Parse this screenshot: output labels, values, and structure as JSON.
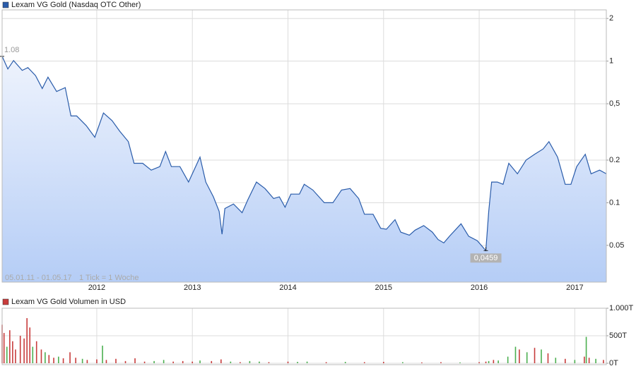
{
  "chart_data": [
    {
      "type": "line",
      "log_y": true,
      "grid": true,
      "legend": "Lexam VG Gold (Nasdaq OTC Other)",
      "note": "05.01.11 - 01.05.17",
      "note2": "1 Tick = 1 Woche",
      "max_label": "1.08",
      "min_label": "0,0459",
      "xlim": [
        2011.01,
        2017.33
      ],
      "xticks": [
        2012,
        2013,
        2014,
        2015,
        2016,
        2017
      ],
      "ylim": [
        0.0275,
        2.3
      ],
      "yticks": [
        0.05,
        0.1,
        0.2,
        {
          "value": 0.5,
          "label": "0,5"
        },
        1,
        2
      ],
      "x": [
        2011.01,
        2011.07,
        2011.13,
        2011.22,
        2011.28,
        2011.36,
        2011.43,
        2011.49,
        2011.58,
        2011.67,
        2011.73,
        2011.79,
        2011.89,
        2011.98,
        2012.07,
        2012.16,
        2012.24,
        2012.33,
        2012.39,
        2012.48,
        2012.57,
        2012.66,
        2012.72,
        2012.78,
        2012.87,
        2012.96,
        2013.05,
        2013.08,
        2013.14,
        2013.22,
        2013.28,
        2013.31,
        2013.34,
        2013.43,
        2013.52,
        2013.58,
        2013.67,
        2013.76,
        2013.85,
        2013.91,
        2013.97,
        2014.03,
        2014.12,
        2014.17,
        2014.26,
        2014.38,
        2014.47,
        2014.56,
        2014.65,
        2014.74,
        2014.8,
        2014.89,
        2014.97,
        2015.03,
        2015.12,
        2015.18,
        2015.27,
        2015.33,
        2015.42,
        2015.51,
        2015.57,
        2015.63,
        2015.69,
        2015.81,
        2015.89,
        2015.98,
        2016.07,
        2016.1,
        2016.13,
        2016.19,
        2016.25,
        2016.31,
        2016.4,
        2016.49,
        2016.58,
        2016.67,
        2016.73,
        2016.82,
        2016.9,
        2016.96,
        2017.02,
        2017.11,
        2017.17,
        2017.26,
        2017.33
      ],
      "series": [
        {
          "name": "Lexam VG Gold (Nasdaq OTC Other)",
          "color": "#2a5caa",
          "values": [
            1.08,
            0.88,
            1.01,
            0.86,
            0.9,
            0.79,
            0.64,
            0.77,
            0.61,
            0.65,
            0.41,
            0.41,
            0.35,
            0.29,
            0.43,
            0.38,
            0.32,
            0.27,
            0.19,
            0.19,
            0.17,
            0.18,
            0.23,
            0.18,
            0.18,
            0.14,
            0.19,
            0.21,
            0.14,
            0.11,
            0.087,
            0.06,
            0.091,
            0.098,
            0.085,
            0.105,
            0.14,
            0.126,
            0.107,
            0.11,
            0.093,
            0.115,
            0.115,
            0.135,
            0.123,
            0.1,
            0.1,
            0.123,
            0.126,
            0.107,
            0.083,
            0.083,
            0.066,
            0.065,
            0.076,
            0.062,
            0.059,
            0.064,
            0.069,
            0.062,
            0.055,
            0.052,
            0.058,
            0.071,
            0.058,
            0.054,
            0.0459,
            0.087,
            0.14,
            0.14,
            0.135,
            0.19,
            0.16,
            0.2,
            0.22,
            0.24,
            0.27,
            0.21,
            0.135,
            0.135,
            0.18,
            0.22,
            0.16,
            0.17,
            0.16
          ]
        }
      ]
    },
    {
      "type": "bar",
      "grid": true,
      "legend": "Lexam VG Gold Volumen in USD",
      "xlim": [
        2011.01,
        2017.33
      ],
      "xticks": [
        2012,
        2013,
        2014,
        2015,
        2016,
        2017
      ],
      "ylim": [
        0,
        1000
      ],
      "yticks": [
        {
          "value": 0,
          "label": "0T"
        },
        {
          "value": 500,
          "label": "500T"
        },
        {
          "value": 1000,
          "label": "1.000T"
        }
      ],
      "x": [
        2011.01,
        2011.03,
        2011.06,
        2011.09,
        2011.12,
        2011.15,
        2011.2,
        2011.24,
        2011.27,
        2011.3,
        2011.33,
        2011.37,
        2011.42,
        2011.46,
        2011.5,
        2011.55,
        2011.6,
        2011.65,
        2011.72,
        2011.78,
        2011.85,
        2011.9,
        2012.0,
        2012.06,
        2012.1,
        2012.2,
        2012.3,
        2012.4,
        2012.5,
        2012.6,
        2012.7,
        2012.8,
        2012.9,
        2013.0,
        2013.08,
        2013.2,
        2013.3,
        2013.4,
        2013.5,
        2013.6,
        2013.7,
        2013.8,
        2014.0,
        2014.1,
        2014.2,
        2014.4,
        2014.6,
        2014.8,
        2015.0,
        2015.2,
        2015.4,
        2015.6,
        2015.8,
        2016.0,
        2016.07,
        2016.1,
        2016.15,
        2016.2,
        2016.3,
        2016.38,
        2016.42,
        2016.5,
        2016.58,
        2016.65,
        2016.72,
        2016.8,
        2016.9,
        2017.0,
        2017.1,
        2017.12,
        2017.15,
        2017.22,
        2017.3
      ],
      "series": [
        {
          "name": "Lexam VG Gold Volumen in USD",
          "color": "#c83c3c",
          "values": [
            700,
            550,
            300,
            600,
            400,
            250,
            500,
            450,
            820,
            650,
            300,
            400,
            250,
            200,
            150,
            100,
            120,
            90,
            200,
            100,
            80,
            60,
            70,
            320,
            60,
            80,
            40,
            90,
            30,
            40,
            60,
            30,
            40,
            30,
            50,
            40,
            70,
            30,
            20,
            40,
            30,
            20,
            30,
            25,
            30,
            20,
            25,
            20,
            25,
            20,
            15,
            20,
            15,
            20,
            30,
            40,
            60,
            50,
            120,
            300,
            250,
            200,
            280,
            250,
            180,
            100,
            80,
            60,
            120,
            480,
            100,
            80,
            60
          ],
          "colors": [
            "#c83c3c",
            "#c83c3c",
            "#4caf50",
            "#c83c3c",
            "#c83c3c",
            "#c83c3c",
            "#c83c3c",
            "#c83c3c",
            "#c83c3c",
            "#c83c3c",
            "#4caf50",
            "#c83c3c",
            "#c83c3c",
            "#4caf50",
            "#c83c3c",
            "#c83c3c",
            "#4caf50",
            "#c83c3c",
            "#c83c3c",
            "#c83c3c",
            "#4caf50",
            "#c83c3c",
            "#c83c3c",
            "#4caf50",
            "#c83c3c",
            "#c83c3c",
            "#c83c3c",
            "#c83c3c",
            "#c83c3c",
            "#4caf50",
            "#4caf50",
            "#c83c3c",
            "#c83c3c",
            "#c83c3c",
            "#4caf50",
            "#c83c3c",
            "#c83c3c",
            "#4caf50",
            "#c83c3c",
            "#4caf50",
            "#4caf50",
            "#c83c3c",
            "#c83c3c",
            "#4caf50",
            "#4caf50",
            "#c83c3c",
            "#4caf50",
            "#c83c3c",
            "#c83c3c",
            "#4caf50",
            "#c83c3c",
            "#c83c3c",
            "#4caf50",
            "#c83c3c",
            "#c83c3c",
            "#4caf50",
            "#c83c3c",
            "#4caf50",
            "#4caf50",
            "#4caf50",
            "#c83c3c",
            "#4caf50",
            "#c83c3c",
            "#4caf50",
            "#c83c3c",
            "#4caf50",
            "#c83c3c",
            "#4caf50",
            "#c83c3c",
            "#4caf50",
            "#c83c3c",
            "#4caf50",
            "#c83c3c"
          ]
        }
      ]
    }
  ]
}
